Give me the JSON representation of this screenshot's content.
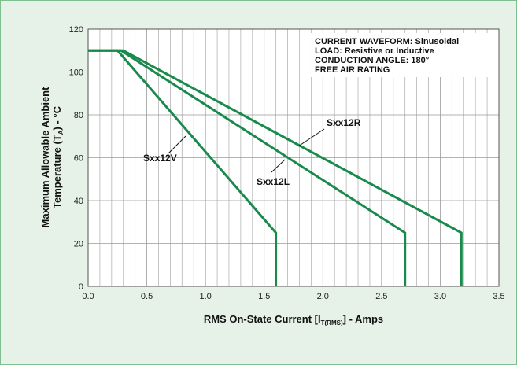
{
  "chart_data": {
    "type": "line",
    "xlabel_main": "RMS On-State Current [I",
    "xlabel_sub": "T(RMS)",
    "xlabel_tail": "] - Amps",
    "ylabel_line1": "Maximum Allowable Ambient",
    "ylabel_line2_main": "Temperature (T",
    "ylabel_line2_sub": "A",
    "ylabel_line2_tail": ") - °C",
    "xlim": [
      0,
      3.5
    ],
    "ylim": [
      0,
      120
    ],
    "x_ticks": [
      "0.0",
      "0.5",
      "1.0",
      "1.5",
      "2.0",
      "2.5",
      "3.0",
      "3.5"
    ],
    "y_ticks": [
      "0",
      "20",
      "40",
      "60",
      "80",
      "100",
      "120"
    ],
    "grid": true,
    "series_color": "#1a8a4c",
    "annotation": [
      "CURRENT WAVEFORM: Sinusoidal",
      "LOAD: Resistive or Inductive",
      "CONDUCTION ANGLE: 180°",
      "FREE AIR RATING"
    ],
    "series": [
      {
        "name": "Sxx12V",
        "x": [
          0,
          0.25,
          1.6,
          1.6
        ],
        "y": [
          110,
          110,
          25,
          0
        ]
      },
      {
        "name": "Sxx12L",
        "x": [
          0,
          0.28,
          2.7,
          2.7
        ],
        "y": [
          110,
          110,
          25,
          0
        ]
      },
      {
        "name": "Sxx12R",
        "x": [
          0,
          0.3,
          3.18,
          3.18
        ],
        "y": [
          110,
          110,
          25,
          0
        ]
      }
    ]
  }
}
